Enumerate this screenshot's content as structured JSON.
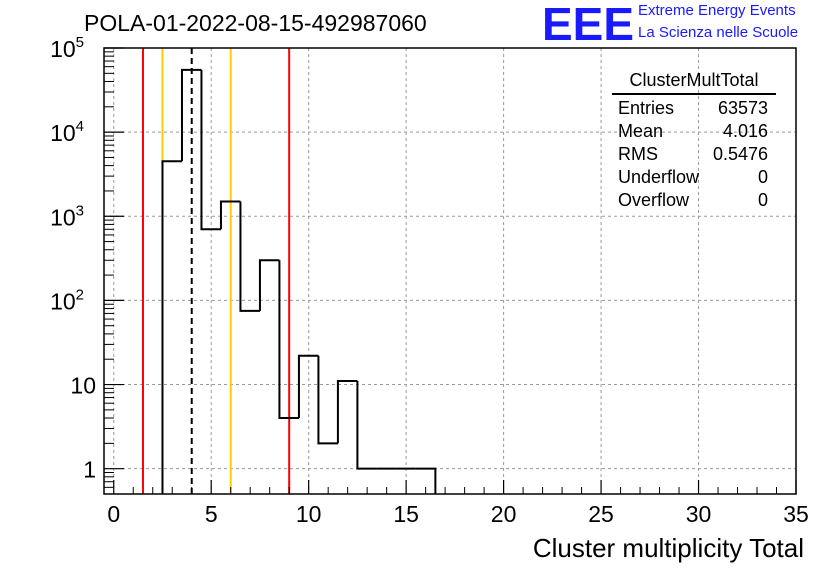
{
  "header": {
    "title": "POLA-01-2022-08-15-492987060",
    "logo_text": "EEE",
    "logo_line1": "Extreme Energy Events",
    "logo_line2": "La Scienza nelle Scuole"
  },
  "stats": {
    "title": "ClusterMultTotal",
    "rows": [
      {
        "label": "Entries",
        "value": "63573"
      },
      {
        "label": "Mean",
        "value": "4.016"
      },
      {
        "label": "RMS",
        "value": "0.5476"
      },
      {
        "label": "Underflow",
        "value": "0"
      },
      {
        "label": "Overflow",
        "value": "0"
      }
    ]
  },
  "chart_data": {
    "type": "histogram",
    "xlabel": "Cluster multiplicity Total",
    "ylabel": "",
    "xlim": [
      -0.5,
      35
    ],
    "ylim": [
      0.5,
      100000
    ],
    "yscale": "log",
    "grid": true,
    "x_ticks": [
      "0",
      "5",
      "10",
      "15",
      "20",
      "25",
      "30",
      "35"
    ],
    "y_ticks": [
      {
        "value": 1,
        "label": "1"
      },
      {
        "value": 10,
        "label": "10"
      },
      {
        "value": 100,
        "label": "10",
        "exp": "2"
      },
      {
        "value": 1000,
        "label": "10",
        "exp": "3"
      },
      {
        "value": 10000,
        "label": "10",
        "exp": "4"
      },
      {
        "value": 100000,
        "label": "10",
        "exp": "5"
      }
    ],
    "bins": [
      {
        "lo": 2.5,
        "hi": 3.5,
        "count": 4500
      },
      {
        "lo": 3.5,
        "hi": 4.5,
        "count": 55000
      },
      {
        "lo": 4.5,
        "hi": 5.5,
        "count": 700
      },
      {
        "lo": 5.5,
        "hi": 6.5,
        "count": 1500
      },
      {
        "lo": 6.5,
        "hi": 7.5,
        "count": 75
      },
      {
        "lo": 7.5,
        "hi": 8.5,
        "count": 300
      },
      {
        "lo": 8.5,
        "hi": 9.5,
        "count": 4
      },
      {
        "lo": 9.5,
        "hi": 10.5,
        "count": 22
      },
      {
        "lo": 10.5,
        "hi": 11.5,
        "count": 2
      },
      {
        "lo": 11.5,
        "hi": 12.5,
        "count": 11
      },
      {
        "lo": 12.5,
        "hi": 13.5,
        "count": 1
      },
      {
        "lo": 13.5,
        "hi": 14.5,
        "count": 1
      },
      {
        "lo": 14.5,
        "hi": 15.5,
        "count": 1
      },
      {
        "lo": 15.5,
        "hi": 16.5,
        "count": 1
      }
    ],
    "vertical_lines": [
      {
        "x": 1.5,
        "color": "#ff0000",
        "style": "solid"
      },
      {
        "x": 2.5,
        "color": "#ffcc00",
        "style": "solid"
      },
      {
        "x": 4.0,
        "color": "#000000",
        "style": "dashed"
      },
      {
        "x": 6.0,
        "color": "#ffcc00",
        "style": "solid"
      },
      {
        "x": 9.0,
        "color": "#ff0000",
        "style": "solid"
      }
    ]
  }
}
